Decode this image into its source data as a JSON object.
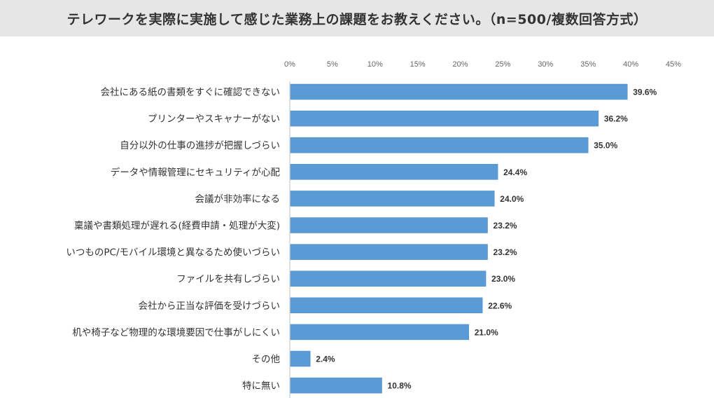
{
  "chart_data": {
    "type": "bar",
    "orientation": "horizontal",
    "title": "テレワークを実際に実施して感じた業務上の課題をお教えください。（n=500/複数回答方式）",
    "categories": [
      "会社にある紙の書類をすぐに確認できない",
      "プリンターやスキャナーがない",
      "自分以外の仕事の進捗が把握しづらい",
      "データや情報管理にセキュリティが心配",
      "会議が非効率になる",
      "稟議や書類処理が遅れる(経費申請・処理が大変)",
      "いつものPC/モバイル環境と異なるため使いづらい",
      "ファイルを共有しづらい",
      "会社から正当な評価を受けづらい",
      "机や椅子など物理的な環境要因で仕事がしにくい",
      "その他",
      "特に無い"
    ],
    "values": [
      39.6,
      36.2,
      35.0,
      24.4,
      24.0,
      23.2,
      23.2,
      23.0,
      22.6,
      21.0,
      2.4,
      10.8
    ],
    "value_labels": [
      "39.6%",
      "36.2%",
      "35.0%",
      "24.4%",
      "24.0%",
      "23.2%",
      "23.2%",
      "23.0%",
      "22.6%",
      "21.0%",
      "2.4%",
      "10.8%"
    ],
    "xlim": [
      0,
      45
    ],
    "xticks": [
      "0%",
      "5%",
      "10%",
      "15%",
      "20%",
      "25%",
      "30%",
      "35%",
      "40%",
      "45%"
    ],
    "xaxis_position": "top",
    "grid": false,
    "bar_color": "#5b9bd5",
    "title_background": "#e6e6e6"
  }
}
